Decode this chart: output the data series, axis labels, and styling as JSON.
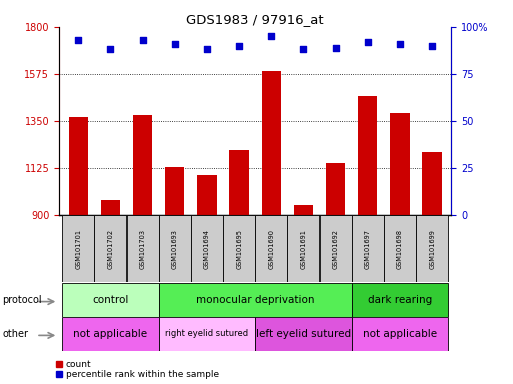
{
  "title": "GDS1983 / 97916_at",
  "samples": [
    "GSM101701",
    "GSM101702",
    "GSM101703",
    "GSM101693",
    "GSM101694",
    "GSM101695",
    "GSM101690",
    "GSM101691",
    "GSM101692",
    "GSM101697",
    "GSM101698",
    "GSM101699"
  ],
  "counts": [
    1370,
    970,
    1380,
    1130,
    1090,
    1210,
    1590,
    950,
    1150,
    1470,
    1390,
    1200
  ],
  "percentiles": [
    93,
    88,
    93,
    91,
    88,
    90,
    95,
    88,
    89,
    92,
    91,
    90
  ],
  "ylim_left": [
    900,
    1800
  ],
  "ylim_right": [
    0,
    100
  ],
  "yticks_left": [
    900,
    1125,
    1350,
    1575,
    1800
  ],
  "yticks_right": [
    0,
    25,
    50,
    75,
    100
  ],
  "bar_color": "#cc0000",
  "dot_color": "#0000cc",
  "protocol_groups": [
    {
      "label": "control",
      "start": 0,
      "end": 3,
      "color": "#bbffbb"
    },
    {
      "label": "monocular deprivation",
      "start": 3,
      "end": 9,
      "color": "#55ee55"
    },
    {
      "label": "dark rearing",
      "start": 9,
      "end": 12,
      "color": "#33cc33"
    }
  ],
  "other_groups": [
    {
      "label": "not applicable",
      "start": 0,
      "end": 3,
      "color": "#ee66ee"
    },
    {
      "label": "right eyelid sutured",
      "start": 3,
      "end": 6,
      "color": "#ffbbff"
    },
    {
      "label": "left eyelid sutured",
      "start": 6,
      "end": 9,
      "color": "#dd55dd"
    },
    {
      "label": "not applicable",
      "start": 9,
      "end": 12,
      "color": "#ee66ee"
    }
  ],
  "protocol_label": "protocol",
  "other_label": "other",
  "legend_count_label": "count",
  "legend_pct_label": "percentile rank within the sample",
  "bg_color": "#ffffff",
  "tick_label_color_left": "#cc0000",
  "tick_label_color_right": "#0000cc",
  "sample_bg_color": "#cccccc"
}
